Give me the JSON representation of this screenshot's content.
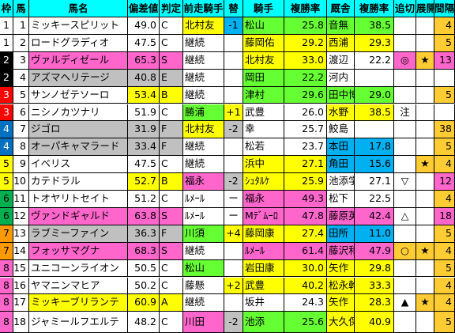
{
  "headers": [
    "枠",
    "馬",
    "馬名",
    "偏差値",
    "判定",
    "前走騎手",
    "替",
    "騎手",
    "複勝率",
    "厩舎",
    "複勝率",
    "追切",
    "展開",
    "間隔",
    ""
  ],
  "colors": {
    "header": "#00ffff",
    "green": "#66ff33",
    "yellow": "#ffff00",
    "pink": "#ff66cc",
    "gray": "#c0c0c0",
    "orange": "#ffcc33",
    "blue": "#00b0f0",
    "waku": [
      "#ffffff",
      "#000000",
      "#ff0000",
      "#0070c0",
      "#ffff00",
      "#00b050",
      "#ff9900",
      "#ff66cc"
    ]
  },
  "rows": [
    {
      "waku": "1",
      "uma": "1",
      "name": "ミッキースピリット",
      "score": "49.0",
      "grade": "C",
      "prev": "北村友",
      "change": "-1",
      "jockey": "松山",
      "jrate": "25.8",
      "stable": "音無",
      "srate": "38.5",
      "oikiri": "",
      "tenkai": "",
      "interval": "4",
      "bg": {
        "score": "",
        "prev": "yellow",
        "change": "blue",
        "jockey": "green",
        "stable": "green",
        "interval": "orange"
      }
    },
    {
      "waku": "1",
      "uma": "2",
      "name": "ロードグラディオ",
      "score": "47.5",
      "grade": "C",
      "prev": "継続",
      "change": "",
      "jockey": "藤岡佑",
      "jrate": "29.2",
      "stable": "西浦",
      "srate": "29.3",
      "oikiri": "",
      "tenkai": "",
      "interval": "5",
      "bg": {
        "score": "",
        "prev": "",
        "change": "",
        "jockey": "yellow",
        "stable": "yellow",
        "interval": "orange"
      }
    },
    {
      "waku": "2",
      "uma": "3",
      "name": "ヴァルディゼール",
      "score": "65.3",
      "grade": "S",
      "prev": "継続",
      "change": "",
      "jockey": "北村友",
      "jrate": "33.0",
      "stable": "渡辺",
      "srate": "22.2",
      "oikiri": "◎",
      "tenkai": "★",
      "interval": "13",
      "bg": {
        "name": "pink",
        "score": "pink",
        "prev": "",
        "change": "",
        "jockey": "yellow",
        "stable": "",
        "interval": "pink",
        "oikiri": "pink",
        "tenkai": "orange"
      }
    },
    {
      "waku": "2",
      "uma": "4",
      "name": "アズマヘリテージ",
      "score": "40.8",
      "grade": "E",
      "prev": "継続",
      "change": "",
      "jockey": "岡田",
      "jrate": "22.2",
      "stable": "河内",
      "srate": "",
      "oikiri": "",
      "tenkai": "",
      "interval": "",
      "bg": {
        "name": "gray",
        "score": "gray",
        "prev": "",
        "change": "",
        "jockey": "green",
        "stable": "",
        "interval": ""
      }
    },
    {
      "waku": "3",
      "uma": "5",
      "name": "サンノゼテソーロ",
      "score": "53.4",
      "grade": "B",
      "prev": "継続",
      "change": "",
      "jockey": "津村",
      "jrate": "29.6",
      "stable": "田中博",
      "srate": "29.0",
      "oikiri": "",
      "tenkai": "",
      "interval": "5",
      "bg": {
        "score": "yellow",
        "prev": "",
        "change": "",
        "jockey": "green",
        "stable": "green",
        "interval": "orange"
      }
    },
    {
      "waku": "3",
      "uma": "6",
      "name": "ニシノカツナリ",
      "score": "51.9",
      "grade": "C",
      "prev": "勝浦",
      "change": "+1",
      "jockey": "武豊",
      "jrate": "26.0",
      "stable": "水野",
      "srate": "38.5",
      "oikiri": "注",
      "tenkai": "",
      "interval": "",
      "bg": {
        "score": "",
        "prev": "green",
        "change": "yellow",
        "jockey": "",
        "stable": "yellow",
        "interval": ""
      }
    },
    {
      "waku": "4",
      "uma": "7",
      "name": "ジゴロ",
      "score": "31.9",
      "grade": "F",
      "prev": "北村友",
      "change": "-2",
      "jockey": "幸",
      "jrate": "25.7",
      "stable": "鮫島",
      "srate": "",
      "oikiri": "",
      "tenkai": "",
      "interval": "38",
      "bg": {
        "name": "gray",
        "score": "gray",
        "prev": "yellow",
        "change": "gray",
        "jockey": "",
        "stable": "",
        "interval": "orange"
      }
    },
    {
      "waku": "4",
      "uma": "8",
      "name": "オーパキャマラード",
      "score": "33.4",
      "grade": "F",
      "prev": "継続",
      "change": "",
      "jockey": "松若",
      "jrate": "23.7",
      "stable": "本田",
      "srate": "17.8",
      "oikiri": "",
      "tenkai": "",
      "interval": "5",
      "bg": {
        "name": "gray",
        "score": "gray",
        "prev": "",
        "change": "",
        "jockey": "",
        "stable": "blue",
        "interval": "orange"
      }
    },
    {
      "waku": "5",
      "uma": "9",
      "name": "イベリス",
      "score": "47.5",
      "grade": "C",
      "prev": "継続",
      "change": "",
      "jockey": "浜中",
      "jrate": "27.1",
      "stable": "角田",
      "srate": "15.6",
      "oikiri": "",
      "tenkai": "★",
      "interval": "4",
      "bg": {
        "score": "",
        "prev": "",
        "change": "",
        "jockey": "yellow",
        "stable": "blue",
        "interval": "orange",
        "tenkai": "orange"
      }
    },
    {
      "waku": "5",
      "uma": "10",
      "name": "カテドラル",
      "score": "52.7",
      "grade": "B",
      "prev": "福永",
      "change": "-2",
      "jockey": "ｼｭﾀﾙｹ",
      "jrate": "25.9",
      "stable": "池添学",
      "srate": "27.1",
      "oikiri": "▽",
      "tenkai": "",
      "interval": "12",
      "bg": {
        "score": "yellow",
        "prev": "pink",
        "change": "gray",
        "jockey": "yellow",
        "stable": "",
        "interval": "pink"
      }
    },
    {
      "waku": "6",
      "uma": "11",
      "name": "トオヤリトセイト",
      "score": "51.2",
      "grade": "C",
      "prev": "ﾙﾒｰﾙ",
      "change": "ー",
      "jockey": "福永",
      "jrate": "49.3",
      "stable": "松下",
      "srate": "22.5",
      "oikiri": "",
      "tenkai": "",
      "interval": "4",
      "bg": {
        "score": "",
        "prev": "",
        "change": "",
        "jockey": "pink",
        "stable": "",
        "interval": "orange"
      }
    },
    {
      "waku": "6",
      "uma": "12",
      "name": "ヴァンドギャルド",
      "score": "63.8",
      "grade": "S",
      "prev": "ﾙﾒｰﾙ",
      "change": "ー",
      "jockey": "Mﾃﾞﾑｰﾛ",
      "jrate": "47.8",
      "stable": "藤原英",
      "srate": "42.4",
      "oikiri": "△",
      "tenkai": "",
      "interval": "18",
      "bg": {
        "name": "pink",
        "score": "pink",
        "prev": "",
        "change": "",
        "jockey": "pink",
        "stable": "pink",
        "interval": "pink"
      }
    },
    {
      "waku": "7",
      "uma": "13",
      "name": "ラブミーファイン",
      "score": "36.3",
      "grade": "F",
      "prev": "川須",
      "change": "+4",
      "jockey": "藤岡康",
      "jrate": "27.4",
      "stable": "田所",
      "srate": "11.0",
      "oikiri": "",
      "tenkai": "",
      "interval": "5",
      "bg": {
        "name": "gray",
        "score": "gray",
        "prev": "green",
        "change": "yellow",
        "jockey": "yellow",
        "stable": "blue",
        "interval": "orange"
      }
    },
    {
      "waku": "7",
      "uma": "14",
      "name": "フォッサマグナ",
      "score": "68.3",
      "grade": "S",
      "prev": "継続",
      "change": "",
      "jockey": "ﾙﾒｰﾙ",
      "jrate": "61.4",
      "stable": "藤沢和",
      "srate": "47.9",
      "oikiri": "○",
      "tenkai": "★",
      "interval": "4",
      "bg": {
        "name": "pink",
        "score": "pink",
        "prev": "",
        "change": "",
        "jockey": "pink",
        "stable": "pink",
        "interval": "orange",
        "oikiri": "orange",
        "tenkai": "orange"
      }
    },
    {
      "waku": "8",
      "uma": "15",
      "name": "ユニコーンライオン",
      "score": "50.5",
      "grade": "C",
      "prev": "松山",
      "change": "",
      "jockey": "岩田康",
      "jrate": "30.0",
      "stable": "矢作",
      "srate": "29.8",
      "oikiri": "",
      "tenkai": "",
      "interval": "5",
      "bg": {
        "score": "",
        "prev": "green",
        "change": "",
        "jockey": "yellow",
        "stable": "yellow",
        "interval": "orange"
      }
    },
    {
      "waku": "8",
      "uma": "16",
      "name": "ヤマニンマヒア",
      "score": "50.2",
      "grade": "C",
      "prev": "藤懸",
      "change": "+2",
      "jockey": "武豊",
      "jrate": "40.2",
      "stable": "松永幹",
      "srate": "33.3",
      "oikiri": "",
      "tenkai": "",
      "interval": "4",
      "bg": {
        "score": "",
        "prev": "",
        "change": "yellow",
        "jockey": "yellow",
        "stable": "yellow",
        "interval": "orange"
      }
    },
    {
      "waku": "8",
      "uma": "17",
      "name": "ミッキーブリランテ",
      "score": "60.9",
      "grade": "A",
      "prev": "継続",
      "change": "",
      "jockey": "坂井",
      "jrate": "24.3",
      "stable": "矢作",
      "srate": "28.3",
      "oikiri": "▲",
      "tenkai": "★",
      "interval": "4",
      "bg": {
        "name": "yellow",
        "score": "yellow",
        "prev": "",
        "change": "",
        "jockey": "",
        "stable": "yellow",
        "interval": "orange",
        "tenkai": "orange"
      }
    },
    {
      "waku": "8",
      "uma": "18",
      "name": "ジャミールフエルテ",
      "score": "48.2",
      "grade": "C",
      "prev": "川田",
      "change": "-2",
      "jockey": "池添",
      "jrate": "25.6",
      "stable": "大久保",
      "srate": "40.9",
      "oikiri": "",
      "tenkai": "",
      "interval": "5",
      "bg": {
        "score": "",
        "prev": "pink",
        "change": "gray",
        "jockey": "green",
        "stable": "yellow",
        "interval": "orange"
      }
    }
  ]
}
